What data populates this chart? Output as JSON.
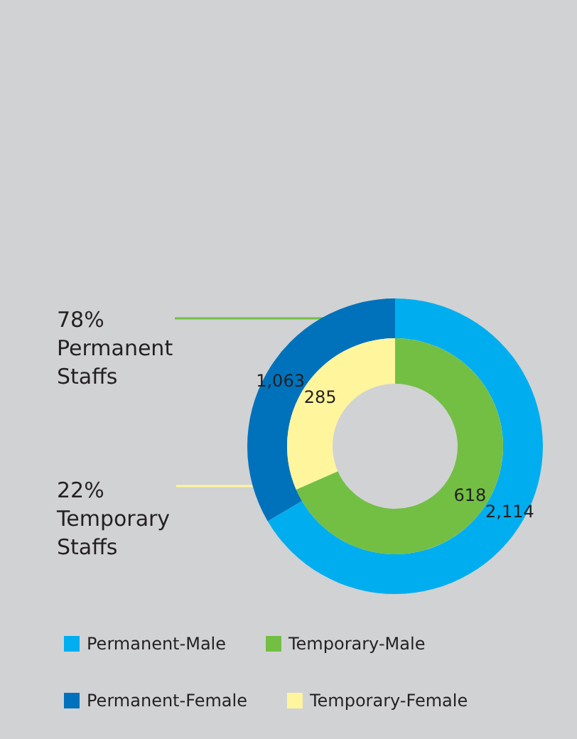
{
  "chart_data": {
    "type": "donut",
    "categories": [
      "Permanent-Male",
      "Permanent-Female",
      "Temporary-Male",
      "Temporary-Female"
    ],
    "colors": [
      "#00aeef",
      "#0072bc",
      "#72bf44",
      "#fff59d"
    ],
    "series": [
      {
        "values": [
          2114,
          1063,
          null,
          null
        ],
        "value_labels": [
          "2,114",
          "1,063",
          null,
          null
        ]
      },
      {
        "values": [
          null,
          null,
          618,
          285
        ],
        "value_labels": [
          null,
          null,
          "618",
          "285"
        ]
      }
    ],
    "annotations": [
      "78%\nPermanent\nStaffs",
      "22%\nTemporary\nStaffs"
    ],
    "legend": "bottom"
  }
}
